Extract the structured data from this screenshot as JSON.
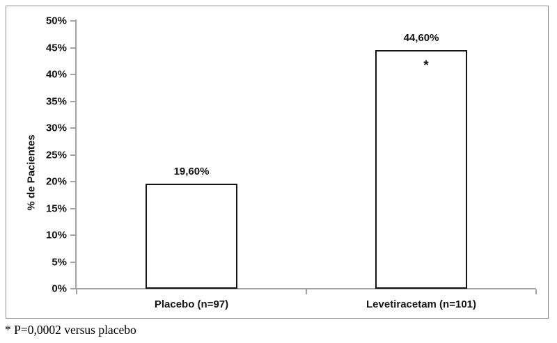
{
  "chart_data": {
    "type": "bar",
    "title": "",
    "ylabel": "% de Pacientes",
    "xlabel": "",
    "categories": [
      "Placebo (n=97)",
      "Levetiracetam (n=101)"
    ],
    "values": [
      19.6,
      44.6
    ],
    "data_labels": [
      "19,60%",
      "44,60%"
    ],
    "ylim": [
      0,
      50
    ],
    "ytick_values": [
      0,
      5,
      10,
      15,
      20,
      25,
      30,
      35,
      40,
      45,
      50
    ],
    "ytick_labels": [
      "0%",
      "5%",
      "10%",
      "15%",
      "20%",
      "25%",
      "30%",
      "35%",
      "40%",
      "45%",
      "50%"
    ],
    "grid": false,
    "legend": "none",
    "annotations": [
      {
        "category_index": 1,
        "text": "*"
      }
    ],
    "colors": {
      "bar_fill": "#ffffff",
      "bar_border": "#141414",
      "axis": "#a3a3a3",
      "frame_border": "#8c8c8c",
      "text": "#141414"
    }
  },
  "footnote": "* P=0,0002 versus placebo"
}
